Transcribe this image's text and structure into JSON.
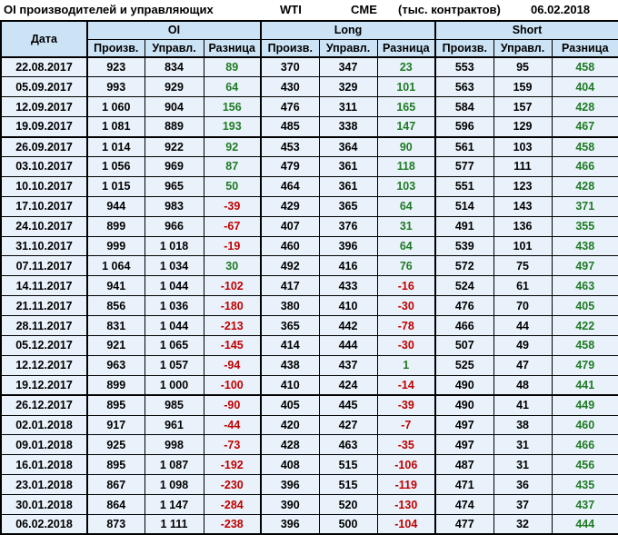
{
  "title": {
    "left": "OI производителей и управляющих",
    "instrument": "WTI",
    "exchange": "CME",
    "units": "(тыс. контрактов)",
    "report_date": "06.02.2018"
  },
  "table": {
    "date_header": "Дата",
    "groups": [
      {
        "label": "OI"
      },
      {
        "label": "Long"
      },
      {
        "label": "Short"
      }
    ],
    "sub_headers": [
      "Произв.",
      "Управл.",
      "Разница"
    ],
    "thick_border_after_dates": [
      "19.09.2017",
      "19.12.2017"
    ],
    "rows": [
      {
        "date": "22.08.2017",
        "values": [
          "923",
          "834",
          "89",
          "370",
          "347",
          "23",
          "553",
          "95",
          "458"
        ]
      },
      {
        "date": "05.09.2017",
        "values": [
          "993",
          "929",
          "64",
          "430",
          "329",
          "101",
          "563",
          "159",
          "404"
        ]
      },
      {
        "date": "12.09.2017",
        "values": [
          "1 060",
          "904",
          "156",
          "476",
          "311",
          "165",
          "584",
          "157",
          "428"
        ]
      },
      {
        "date": "19.09.2017",
        "values": [
          "1 081",
          "889",
          "193",
          "485",
          "338",
          "147",
          "596",
          "129",
          "467"
        ]
      },
      {
        "date": "26.09.2017",
        "values": [
          "1 014",
          "922",
          "92",
          "453",
          "364",
          "90",
          "561",
          "103",
          "458"
        ]
      },
      {
        "date": "03.10.2017",
        "values": [
          "1 056",
          "969",
          "87",
          "479",
          "361",
          "118",
          "577",
          "111",
          "466"
        ]
      },
      {
        "date": "10.10.2017",
        "values": [
          "1 015",
          "965",
          "50",
          "464",
          "361",
          "103",
          "551",
          "123",
          "428"
        ]
      },
      {
        "date": "17.10.2017",
        "values": [
          "944",
          "983",
          "-39",
          "429",
          "365",
          "64",
          "514",
          "143",
          "371"
        ]
      },
      {
        "date": "24.10.2017",
        "values": [
          "899",
          "966",
          "-67",
          "407",
          "376",
          "31",
          "491",
          "136",
          "355"
        ]
      },
      {
        "date": "31.10.2017",
        "values": [
          "999",
          "1 018",
          "-19",
          "460",
          "396",
          "64",
          "539",
          "101",
          "438"
        ]
      },
      {
        "date": "07.11.2017",
        "values": [
          "1 064",
          "1 034",
          "30",
          "492",
          "416",
          "76",
          "572",
          "75",
          "497"
        ]
      },
      {
        "date": "14.11.2017",
        "values": [
          "941",
          "1 044",
          "-102",
          "417",
          "433",
          "-16",
          "524",
          "61",
          "463"
        ]
      },
      {
        "date": "21.11.2017",
        "values": [
          "856",
          "1 036",
          "-180",
          "380",
          "410",
          "-30",
          "476",
          "70",
          "405"
        ]
      },
      {
        "date": "28.11.2017",
        "values": [
          "831",
          "1 044",
          "-213",
          "365",
          "442",
          "-78",
          "466",
          "44",
          "422"
        ]
      },
      {
        "date": "05.12.2017",
        "values": [
          "921",
          "1 065",
          "-145",
          "414",
          "444",
          "-30",
          "507",
          "49",
          "458"
        ]
      },
      {
        "date": "12.12.2017",
        "values": [
          "963",
          "1 057",
          "-94",
          "438",
          "437",
          "1",
          "525",
          "47",
          "479"
        ]
      },
      {
        "date": "19.12.2017",
        "values": [
          "899",
          "1 000",
          "-100",
          "410",
          "424",
          "-14",
          "490",
          "48",
          "441"
        ]
      },
      {
        "date": "26.12.2017",
        "values": [
          "895",
          "985",
          "-90",
          "405",
          "445",
          "-39",
          "490",
          "41",
          "449"
        ]
      },
      {
        "date": "02.01.2018",
        "values": [
          "917",
          "961",
          "-44",
          "420",
          "427",
          "-7",
          "497",
          "38",
          "460"
        ]
      },
      {
        "date": "09.01.2018",
        "values": [
          "925",
          "998",
          "-73",
          "428",
          "463",
          "-35",
          "497",
          "31",
          "466"
        ]
      },
      {
        "date": "16.01.2018",
        "values": [
          "895",
          "1 087",
          "-192",
          "408",
          "515",
          "-106",
          "487",
          "31",
          "456"
        ]
      },
      {
        "date": "23.01.2018",
        "values": [
          "867",
          "1 098",
          "-230",
          "396",
          "515",
          "-119",
          "471",
          "36",
          "435"
        ]
      },
      {
        "date": "30.01.2018",
        "values": [
          "864",
          "1 147",
          "-284",
          "390",
          "520",
          "-130",
          "474",
          "37",
          "437"
        ]
      },
      {
        "date": "06.02.2018",
        "values": [
          "873",
          "1 111",
          "-238",
          "396",
          "500",
          "-104",
          "477",
          "32",
          "444"
        ]
      }
    ]
  },
  "colors": {
    "header_bg": "#cce3f6",
    "row_bg": "#e9f2fb",
    "positive_green": "#1f7a24",
    "negative_red": "#c00000",
    "border": "#000000"
  }
}
